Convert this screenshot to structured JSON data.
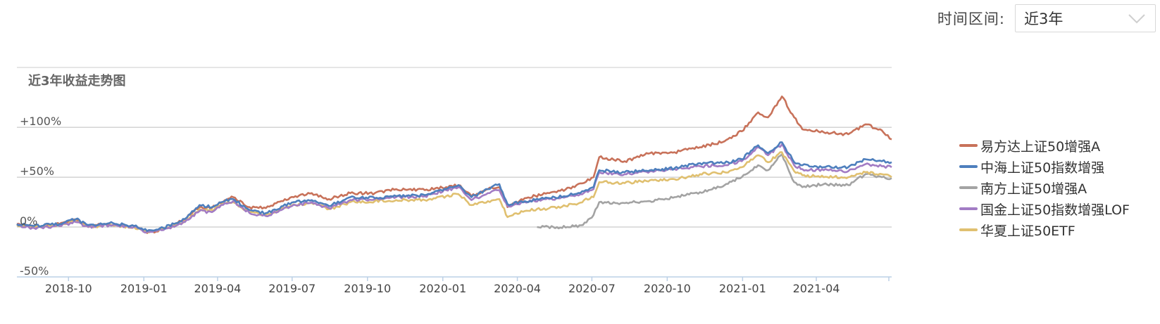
{
  "range_selector": {
    "label": "时间区间:",
    "selected": "近3年"
  },
  "chart_data": {
    "type": "line",
    "title": "近3年收益走势图",
    "x_range": [
      "2018-07-30",
      "2021-07-02"
    ],
    "y_range": [
      -0.5,
      1.6
    ],
    "y_ticks": [
      {
        "value": 1.0,
        "label": "+100%"
      },
      {
        "value": 0.5,
        "label": "+50%"
      },
      {
        "value": 0.0,
        "label": "0%"
      },
      {
        "value": -0.5,
        "label": "-50%"
      }
    ],
    "x_ticks": [
      "2018-10",
      "2019-01",
      "2019-04",
      "2019-07",
      "2019-10",
      "2020-01",
      "2020-04",
      "2020-07",
      "2020-10",
      "2021-01",
      "2021-04"
    ],
    "grid": "horizontal",
    "legend_position": "right",
    "series": [
      {
        "name": "易方达上证50增强A",
        "color": "#c8725a",
        "points": [
          [
            "2018-07-30",
            0.03
          ],
          [
            "2018-08-20",
            0.0
          ],
          [
            "2018-09-20",
            0.03
          ],
          [
            "2018-10-10",
            0.07
          ],
          [
            "2018-10-25",
            0.01
          ],
          [
            "2018-11-20",
            0.03
          ],
          [
            "2018-12-20",
            0.01
          ],
          [
            "2019-01-05",
            -0.06
          ],
          [
            "2019-01-25",
            -0.02
          ],
          [
            "2019-02-20",
            0.08
          ],
          [
            "2019-03-10",
            0.2
          ],
          [
            "2019-03-25",
            0.19
          ],
          [
            "2019-04-10",
            0.27
          ],
          [
            "2019-04-20",
            0.3
          ],
          [
            "2019-05-10",
            0.2
          ],
          [
            "2019-05-30",
            0.19
          ],
          [
            "2019-06-20",
            0.26
          ],
          [
            "2019-07-05",
            0.31
          ],
          [
            "2019-07-25",
            0.34
          ],
          [
            "2019-08-15",
            0.28
          ],
          [
            "2019-09-10",
            0.34
          ],
          [
            "2019-10-10",
            0.34
          ],
          [
            "2019-11-05",
            0.38
          ],
          [
            "2019-12-10",
            0.37
          ],
          [
            "2020-01-05",
            0.4
          ],
          [
            "2020-01-20",
            0.42
          ],
          [
            "2020-02-05",
            0.31
          ],
          [
            "2020-02-25",
            0.38
          ],
          [
            "2020-03-10",
            0.4
          ],
          [
            "2020-03-20",
            0.2
          ],
          [
            "2020-04-10",
            0.29
          ],
          [
            "2020-05-10",
            0.34
          ],
          [
            "2020-06-10",
            0.4
          ],
          [
            "2020-07-03",
            0.5
          ],
          [
            "2020-07-10",
            0.7
          ],
          [
            "2020-08-10",
            0.66
          ],
          [
            "2020-09-10",
            0.74
          ],
          [
            "2020-10-10",
            0.75
          ],
          [
            "2020-11-10",
            0.8
          ],
          [
            "2020-12-10",
            0.86
          ],
          [
            "2020-12-31",
            0.96
          ],
          [
            "2021-01-20",
            1.15
          ],
          [
            "2021-02-01",
            1.1
          ],
          [
            "2021-02-18",
            1.31
          ],
          [
            "2021-03-05",
            1.1
          ],
          [
            "2021-03-15",
            0.98
          ],
          [
            "2021-04-10",
            0.95
          ],
          [
            "2021-05-10",
            0.93
          ],
          [
            "2021-05-31",
            1.03
          ],
          [
            "2021-06-20",
            0.97
          ],
          [
            "2021-07-02",
            0.88
          ]
        ]
      },
      {
        "name": "中海上证50指数增强",
        "color": "#4e7fbd",
        "points": [
          [
            "2018-07-30",
            0.03
          ],
          [
            "2018-08-20",
            0.01
          ],
          [
            "2018-09-20",
            0.03
          ],
          [
            "2018-10-10",
            0.08
          ],
          [
            "2018-10-25",
            0.02
          ],
          [
            "2018-11-20",
            0.04
          ],
          [
            "2018-12-20",
            0.01
          ],
          [
            "2019-01-05",
            -0.04
          ],
          [
            "2019-01-25",
            -0.01
          ],
          [
            "2019-02-20",
            0.08
          ],
          [
            "2019-03-10",
            0.22
          ],
          [
            "2019-03-25",
            0.2
          ],
          [
            "2019-04-10",
            0.26
          ],
          [
            "2019-04-20",
            0.28
          ],
          [
            "2019-05-10",
            0.17
          ],
          [
            "2019-05-30",
            0.14
          ],
          [
            "2019-06-20",
            0.21
          ],
          [
            "2019-07-05",
            0.25
          ],
          [
            "2019-07-25",
            0.27
          ],
          [
            "2019-08-15",
            0.21
          ],
          [
            "2019-09-10",
            0.3
          ],
          [
            "2019-10-10",
            0.29
          ],
          [
            "2019-11-05",
            0.31
          ],
          [
            "2019-12-10",
            0.32
          ],
          [
            "2020-01-05",
            0.38
          ],
          [
            "2020-01-20",
            0.42
          ],
          [
            "2020-02-05",
            0.3
          ],
          [
            "2020-02-25",
            0.38
          ],
          [
            "2020-03-10",
            0.43
          ],
          [
            "2020-03-20",
            0.23
          ],
          [
            "2020-04-10",
            0.26
          ],
          [
            "2020-05-10",
            0.29
          ],
          [
            "2020-06-10",
            0.33
          ],
          [
            "2020-07-03",
            0.4
          ],
          [
            "2020-07-10",
            0.57
          ],
          [
            "2020-08-10",
            0.55
          ],
          [
            "2020-09-10",
            0.57
          ],
          [
            "2020-10-10",
            0.59
          ],
          [
            "2020-11-10",
            0.64
          ],
          [
            "2020-12-10",
            0.64
          ],
          [
            "2020-12-31",
            0.68
          ],
          [
            "2021-01-20",
            0.82
          ],
          [
            "2021-02-01",
            0.74
          ],
          [
            "2021-02-18",
            0.85
          ],
          [
            "2021-03-05",
            0.65
          ],
          [
            "2021-03-15",
            0.62
          ],
          [
            "2021-04-10",
            0.6
          ],
          [
            "2021-05-10",
            0.6
          ],
          [
            "2021-05-31",
            0.68
          ],
          [
            "2021-06-20",
            0.66
          ],
          [
            "2021-07-02",
            0.65
          ]
        ]
      },
      {
        "name": "南方上证50增强A",
        "color": "#a3a3a3",
        "points": [
          [
            "2020-04-25",
            0.0
          ],
          [
            "2020-05-15",
            0.0
          ],
          [
            "2020-06-01",
            0.0
          ],
          [
            "2020-06-20",
            0.02
          ],
          [
            "2020-07-03",
            0.12
          ],
          [
            "2020-07-10",
            0.25
          ],
          [
            "2020-08-10",
            0.24
          ],
          [
            "2020-09-10",
            0.26
          ],
          [
            "2020-10-10",
            0.3
          ],
          [
            "2020-11-10",
            0.35
          ],
          [
            "2020-12-10",
            0.42
          ],
          [
            "2020-12-31",
            0.5
          ],
          [
            "2021-01-20",
            0.62
          ],
          [
            "2021-02-01",
            0.57
          ],
          [
            "2021-02-18",
            0.73
          ],
          [
            "2021-03-05",
            0.45
          ],
          [
            "2021-03-15",
            0.4
          ],
          [
            "2021-04-10",
            0.43
          ],
          [
            "2021-05-10",
            0.42
          ],
          [
            "2021-05-31",
            0.53
          ],
          [
            "2021-06-20",
            0.5
          ],
          [
            "2021-07-02",
            0.49
          ]
        ]
      },
      {
        "name": "国金上证50指数增强LOF",
        "color": "#a27cc4",
        "points": [
          [
            "2018-07-30",
            0.02
          ],
          [
            "2018-08-20",
            -0.01
          ],
          [
            "2018-09-20",
            0.01
          ],
          [
            "2018-10-10",
            0.05
          ],
          [
            "2018-10-25",
            0.0
          ],
          [
            "2018-11-20",
            0.02
          ],
          [
            "2018-12-20",
            0.0
          ],
          [
            "2019-01-05",
            -0.05
          ],
          [
            "2019-01-25",
            -0.03
          ],
          [
            "2019-02-20",
            0.05
          ],
          [
            "2019-03-10",
            0.16
          ],
          [
            "2019-03-25",
            0.15
          ],
          [
            "2019-04-10",
            0.24
          ],
          [
            "2019-04-20",
            0.26
          ],
          [
            "2019-05-10",
            0.14
          ],
          [
            "2019-05-30",
            0.11
          ],
          [
            "2019-06-20",
            0.18
          ],
          [
            "2019-07-05",
            0.22
          ],
          [
            "2019-07-25",
            0.25
          ],
          [
            "2019-08-15",
            0.19
          ],
          [
            "2019-09-10",
            0.27
          ],
          [
            "2019-10-10",
            0.28
          ],
          [
            "2019-11-05",
            0.3
          ],
          [
            "2019-12-10",
            0.31
          ],
          [
            "2020-01-05",
            0.37
          ],
          [
            "2020-01-20",
            0.4
          ],
          [
            "2020-02-05",
            0.27
          ],
          [
            "2020-02-25",
            0.34
          ],
          [
            "2020-03-10",
            0.37
          ],
          [
            "2020-03-20",
            0.21
          ],
          [
            "2020-04-10",
            0.25
          ],
          [
            "2020-05-10",
            0.28
          ],
          [
            "2020-06-10",
            0.31
          ],
          [
            "2020-07-03",
            0.38
          ],
          [
            "2020-07-10",
            0.55
          ],
          [
            "2020-08-10",
            0.53
          ],
          [
            "2020-09-10",
            0.56
          ],
          [
            "2020-10-10",
            0.58
          ],
          [
            "2020-11-10",
            0.61
          ],
          [
            "2020-12-10",
            0.62
          ],
          [
            "2020-12-31",
            0.66
          ],
          [
            "2021-01-20",
            0.8
          ],
          [
            "2021-02-01",
            0.72
          ],
          [
            "2021-02-18",
            0.83
          ],
          [
            "2021-03-05",
            0.62
          ],
          [
            "2021-03-15",
            0.58
          ],
          [
            "2021-04-10",
            0.57
          ],
          [
            "2021-05-10",
            0.56
          ],
          [
            "2021-05-31",
            0.63
          ],
          [
            "2021-06-20",
            0.61
          ],
          [
            "2021-07-02",
            0.6
          ]
        ]
      },
      {
        "name": "华夏上证50ETF",
        "color": "#e0c070",
        "points": [
          [
            "2018-07-30",
            0.02
          ],
          [
            "2018-08-20",
            0.0
          ],
          [
            "2018-09-20",
            0.02
          ],
          [
            "2018-10-10",
            0.06
          ],
          [
            "2018-10-25",
            0.0
          ],
          [
            "2018-11-20",
            0.02
          ],
          [
            "2018-12-20",
            0.0
          ],
          [
            "2019-01-05",
            -0.05
          ],
          [
            "2019-01-25",
            -0.02
          ],
          [
            "2019-02-20",
            0.06
          ],
          [
            "2019-03-10",
            0.18
          ],
          [
            "2019-03-25",
            0.17
          ],
          [
            "2019-04-10",
            0.24
          ],
          [
            "2019-04-20",
            0.25
          ],
          [
            "2019-05-10",
            0.15
          ],
          [
            "2019-05-30",
            0.12
          ],
          [
            "2019-06-20",
            0.19
          ],
          [
            "2019-07-05",
            0.22
          ],
          [
            "2019-07-25",
            0.24
          ],
          [
            "2019-08-15",
            0.18
          ],
          [
            "2019-09-10",
            0.25
          ],
          [
            "2019-10-10",
            0.26
          ],
          [
            "2019-11-05",
            0.27
          ],
          [
            "2019-12-10",
            0.27
          ],
          [
            "2020-01-05",
            0.31
          ],
          [
            "2020-01-20",
            0.33
          ],
          [
            "2020-02-05",
            0.22
          ],
          [
            "2020-02-25",
            0.26
          ],
          [
            "2020-03-10",
            0.28
          ],
          [
            "2020-03-20",
            0.1
          ],
          [
            "2020-04-10",
            0.16
          ],
          [
            "2020-05-10",
            0.19
          ],
          [
            "2020-06-10",
            0.23
          ],
          [
            "2020-07-03",
            0.3
          ],
          [
            "2020-07-10",
            0.45
          ],
          [
            "2020-08-10",
            0.44
          ],
          [
            "2020-09-10",
            0.47
          ],
          [
            "2020-10-10",
            0.48
          ],
          [
            "2020-11-10",
            0.53
          ],
          [
            "2020-12-10",
            0.55
          ],
          [
            "2020-12-31",
            0.6
          ],
          [
            "2021-01-20",
            0.72
          ],
          [
            "2021-02-01",
            0.65
          ],
          [
            "2021-02-18",
            0.75
          ],
          [
            "2021-03-05",
            0.56
          ],
          [
            "2021-03-15",
            0.52
          ],
          [
            "2021-04-10",
            0.5
          ],
          [
            "2021-05-10",
            0.5
          ],
          [
            "2021-05-31",
            0.55
          ],
          [
            "2021-06-20",
            0.53
          ],
          [
            "2021-07-02",
            0.5
          ]
        ]
      }
    ]
  }
}
